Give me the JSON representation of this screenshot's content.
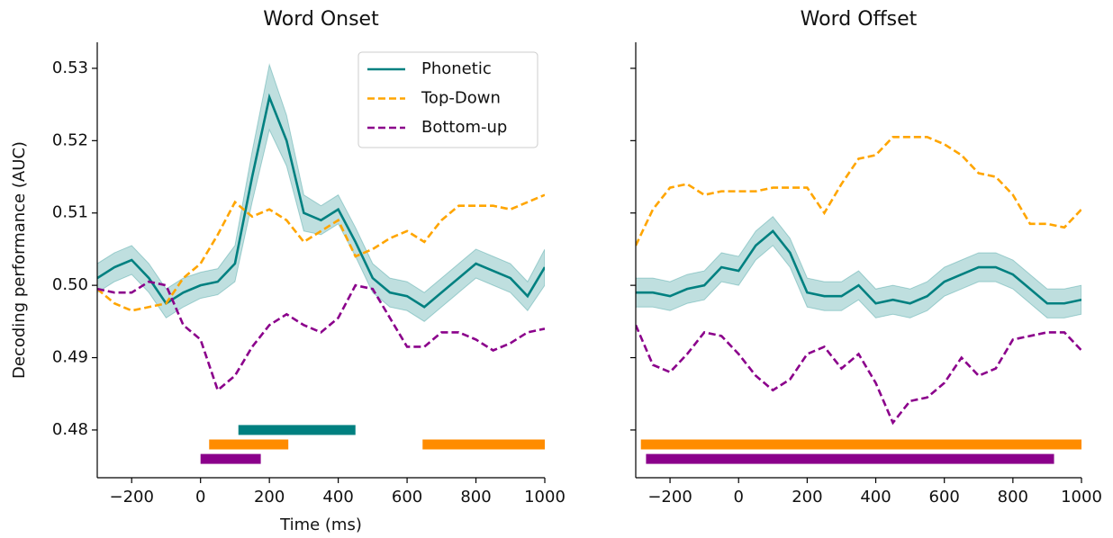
{
  "chart_data": [
    {
      "type": "line",
      "title": "Word Onset",
      "xlabel": "Time (ms)",
      "ylabel": "Decoding performance (AUC)",
      "x": [
        -300,
        -250,
        -200,
        -150,
        -100,
        -50,
        0,
        50,
        100,
        150,
        200,
        250,
        300,
        350,
        400,
        450,
        500,
        550,
        600,
        650,
        700,
        750,
        800,
        850,
        900,
        950,
        1000
      ],
      "series": [
        {
          "name": "Phonetic",
          "color": "#008080",
          "dashed": false,
          "values": [
            0.501,
            0.5025,
            0.5035,
            0.501,
            0.4975,
            0.499,
            0.5,
            0.5005,
            0.503,
            0.515,
            0.526,
            0.52,
            0.51,
            0.509,
            0.5105,
            0.506,
            0.501,
            0.499,
            0.4985,
            0.497,
            0.499,
            0.501,
            0.503,
            0.502,
            0.501,
            0.4985,
            0.5025
          ],
          "error": [
            0.002,
            0.002,
            0.002,
            0.002,
            0.002,
            0.002,
            0.0018,
            0.0018,
            0.0025,
            0.0035,
            0.0045,
            0.0035,
            0.0025,
            0.002,
            0.002,
            0.002,
            0.002,
            0.002,
            0.002,
            0.002,
            0.002,
            0.002,
            0.002,
            0.002,
            0.002,
            0.002,
            0.0025
          ]
        },
        {
          "name": "Top-Down",
          "color": "#ffa500",
          "dashed": true,
          "values": [
            0.4995,
            0.4975,
            0.4965,
            0.497,
            0.4975,
            0.501,
            0.503,
            0.507,
            0.5115,
            0.5095,
            0.5105,
            0.509,
            0.506,
            0.5075,
            0.509,
            0.504,
            0.505,
            0.5065,
            0.5075,
            0.506,
            0.509,
            0.511,
            0.511,
            0.511,
            0.5105,
            0.5115,
            0.5125
          ]
        },
        {
          "name": "Bottom-up",
          "color": "#8b008b",
          "dashed": true,
          "values": [
            0.4995,
            0.499,
            0.499,
            0.5005,
            0.5,
            0.4945,
            0.4925,
            0.4855,
            0.4875,
            0.4915,
            0.4945,
            0.496,
            0.4945,
            0.4935,
            0.4955,
            0.5,
            0.4995,
            0.4955,
            0.4915,
            0.4915,
            0.4935,
            0.4935,
            0.4925,
            0.491,
            0.492,
            0.4935,
            0.494
          ]
        }
      ],
      "sig_bars": [
        {
          "color": "#008080",
          "start": 110,
          "end": 450,
          "y": 0.48
        },
        {
          "color": "#ff8c00",
          "start": 25,
          "end": 255,
          "y": 0.478
        },
        {
          "color": "#ff8c00",
          "start": 645,
          "end": 1000,
          "y": 0.478
        },
        {
          "color": "#8b008b",
          "start": 0,
          "end": 175,
          "y": 0.476
        }
      ],
      "xlim": [
        -300,
        1000
      ],
      "ylim": [
        0.4734,
        0.5336
      ],
      "xticks": [
        {
          "value": -200,
          "label": "−200"
        },
        0,
        200,
        400,
        600,
        800,
        1000
      ],
      "yticks": [
        0.48,
        0.49,
        {
          "value": 0.5,
          "label": "0.50"
        },
        0.51,
        0.52,
        0.53
      ],
      "ytick_labels": true,
      "legend": "upper right"
    },
    {
      "type": "line",
      "title": "Word Offset",
      "x": [
        -300,
        -250,
        -200,
        -150,
        -100,
        -50,
        0,
        50,
        100,
        150,
        200,
        250,
        300,
        350,
        400,
        450,
        500,
        550,
        600,
        650,
        700,
        750,
        800,
        850,
        900,
        950,
        1000
      ],
      "series": [
        {
          "color": "#008080",
          "dashed": false,
          "values": [
            0.499,
            0.499,
            0.4985,
            0.4995,
            0.5,
            0.5025,
            0.502,
            0.5055,
            0.5075,
            0.5045,
            0.499,
            0.4985,
            0.4985,
            0.5,
            0.4975,
            0.498,
            0.4975,
            0.4985,
            0.5005,
            0.5015,
            0.5025,
            0.5025,
            0.5015,
            0.4995,
            0.4975,
            0.4975,
            0.498
          ],
          "error": [
            0.002,
            0.002,
            0.002,
            0.002,
            0.002,
            0.002,
            0.002,
            0.002,
            0.002,
            0.002,
            0.002,
            0.002,
            0.002,
            0.002,
            0.002,
            0.002,
            0.002,
            0.002,
            0.002,
            0.002,
            0.002,
            0.002,
            0.002,
            0.002,
            0.002,
            0.002,
            0.002
          ]
        },
        {
          "color": "#ffa500",
          "dashed": true,
          "values": [
            0.5055,
            0.5105,
            0.5135,
            0.514,
            0.5125,
            0.513,
            0.513,
            0.513,
            0.5135,
            0.5135,
            0.5135,
            0.51,
            0.514,
            0.5175,
            0.518,
            0.5205,
            0.5205,
            0.5205,
            0.5195,
            0.518,
            0.5155,
            0.515,
            0.5125,
            0.5085,
            0.5085,
            0.508,
            0.5105
          ]
        },
        {
          "color": "#8b008b",
          "dashed": true,
          "values": [
            0.4945,
            0.489,
            0.488,
            0.4905,
            0.4935,
            0.493,
            0.4905,
            0.4875,
            0.4855,
            0.487,
            0.4905,
            0.4915,
            0.4885,
            0.4905,
            0.4865,
            0.481,
            0.484,
            0.4845,
            0.4865,
            0.49,
            0.4875,
            0.4885,
            0.4925,
            0.493,
            0.4935,
            0.4935,
            0.491
          ]
        }
      ],
      "sig_bars": [
        {
          "color": "#ff8c00",
          "start": -285,
          "end": 1000,
          "y": 0.478
        },
        {
          "color": "#8b008b",
          "start": -270,
          "end": 920,
          "y": 0.476
        }
      ],
      "xlim": [
        -300,
        1000
      ],
      "ylim": [
        0.4734,
        0.5336
      ],
      "xticks": [
        {
          "value": -200,
          "label": "−200"
        },
        0,
        200,
        400,
        600,
        800,
        1000
      ],
      "yticks": [
        0.48,
        0.49,
        {
          "value": 0.5,
          "label": "0.50"
        },
        0.51,
        0.52,
        0.53
      ],
      "ytick_labels": false
    }
  ]
}
